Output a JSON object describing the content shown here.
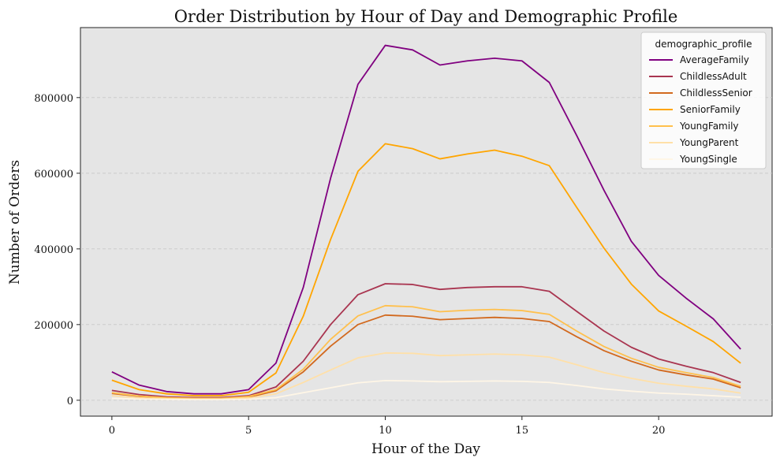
{
  "chart_data": {
    "type": "line",
    "title": "Order Distribution by Hour of Day and Demographic Profile",
    "xlabel": "Hour of the Day",
    "ylabel": "Number of Orders",
    "xlim": [
      -1.15,
      24.15
    ],
    "ylim": [
      -42000,
      985000
    ],
    "xticks": [
      0,
      5,
      10,
      15,
      20
    ],
    "yticks": [
      0,
      200000,
      400000,
      600000,
      800000
    ],
    "grid": "y-dashed",
    "legend": {
      "title": "demographic_profile",
      "placement": "top-right"
    },
    "x": [
      0,
      1,
      2,
      3,
      4,
      5,
      6,
      7,
      8,
      9,
      10,
      11,
      12,
      13,
      14,
      15,
      16,
      17,
      18,
      19,
      20,
      21,
      22,
      23
    ],
    "series": [
      {
        "name": "AverageFamily",
        "color": "#800080",
        "values": [
          75000,
          40000,
          23000,
          17000,
          17000,
          28000,
          98000,
          298000,
          587000,
          835000,
          938000,
          926000,
          886000,
          897000,
          904000,
          897000,
          840000,
          700000,
          555000,
          420000,
          330000,
          270000,
          215000,
          135000
        ]
      },
      {
        "name": "ChildlessAdult",
        "color": "#a93550",
        "values": [
          26000,
          15000,
          9000,
          7000,
          7000,
          12000,
          35000,
          103000,
          200000,
          279000,
          308000,
          306000,
          293000,
          298000,
          300000,
          300000,
          288000,
          235000,
          183000,
          140000,
          109000,
          90000,
          73000,
          47000
        ]
      },
      {
        "name": "ChildlessSenior",
        "color": "#d2691e",
        "values": [
          18000,
          10000,
          6000,
          4500,
          4500,
          8000,
          25000,
          75000,
          143000,
          200000,
          225000,
          222000,
          213000,
          216000,
          219000,
          216000,
          208000,
          168000,
          131000,
          103000,
          80000,
          67000,
          56000,
          33000
        ]
      },
      {
        "name": "SeniorFamily",
        "color": "#ffa500",
        "values": [
          53000,
          28000,
          17000,
          12000,
          12000,
          21000,
          72000,
          222000,
          425000,
          605000,
          678000,
          665000,
          638000,
          651000,
          661000,
          645000,
          620000,
          510000,
          402000,
          307000,
          236000,
          196000,
          155000,
          98000
        ]
      },
      {
        "name": "YoungFamily",
        "color": "#ffc04d",
        "values": [
          20000,
          11000,
          7000,
          5000,
          5000,
          10000,
          28000,
          82000,
          161000,
          223000,
          250000,
          247000,
          234000,
          238000,
          240000,
          237000,
          227000,
          183000,
          142000,
          111000,
          87000,
          73000,
          60000,
          37000
        ]
      },
      {
        "name": "YoungParent",
        "color": "#ffe0a8",
        "values": [
          12000,
          6000,
          4000,
          3000,
          3000,
          6000,
          17000,
          47000,
          80000,
          112000,
          125000,
          124000,
          118000,
          120000,
          122000,
          120000,
          114000,
          94000,
          73000,
          58000,
          45000,
          37000,
          30000,
          19000
        ]
      },
      {
        "name": "YoungSingle",
        "color": "#fff6e6",
        "values": [
          5000,
          3000,
          2000,
          1500,
          1500,
          2500,
          7000,
          20000,
          33000,
          46000,
          52000,
          51000,
          49000,
          50000,
          51000,
          50000,
          47000,
          39000,
          30000,
          24000,
          19000,
          16000,
          12000,
          8000
        ]
      }
    ]
  }
}
